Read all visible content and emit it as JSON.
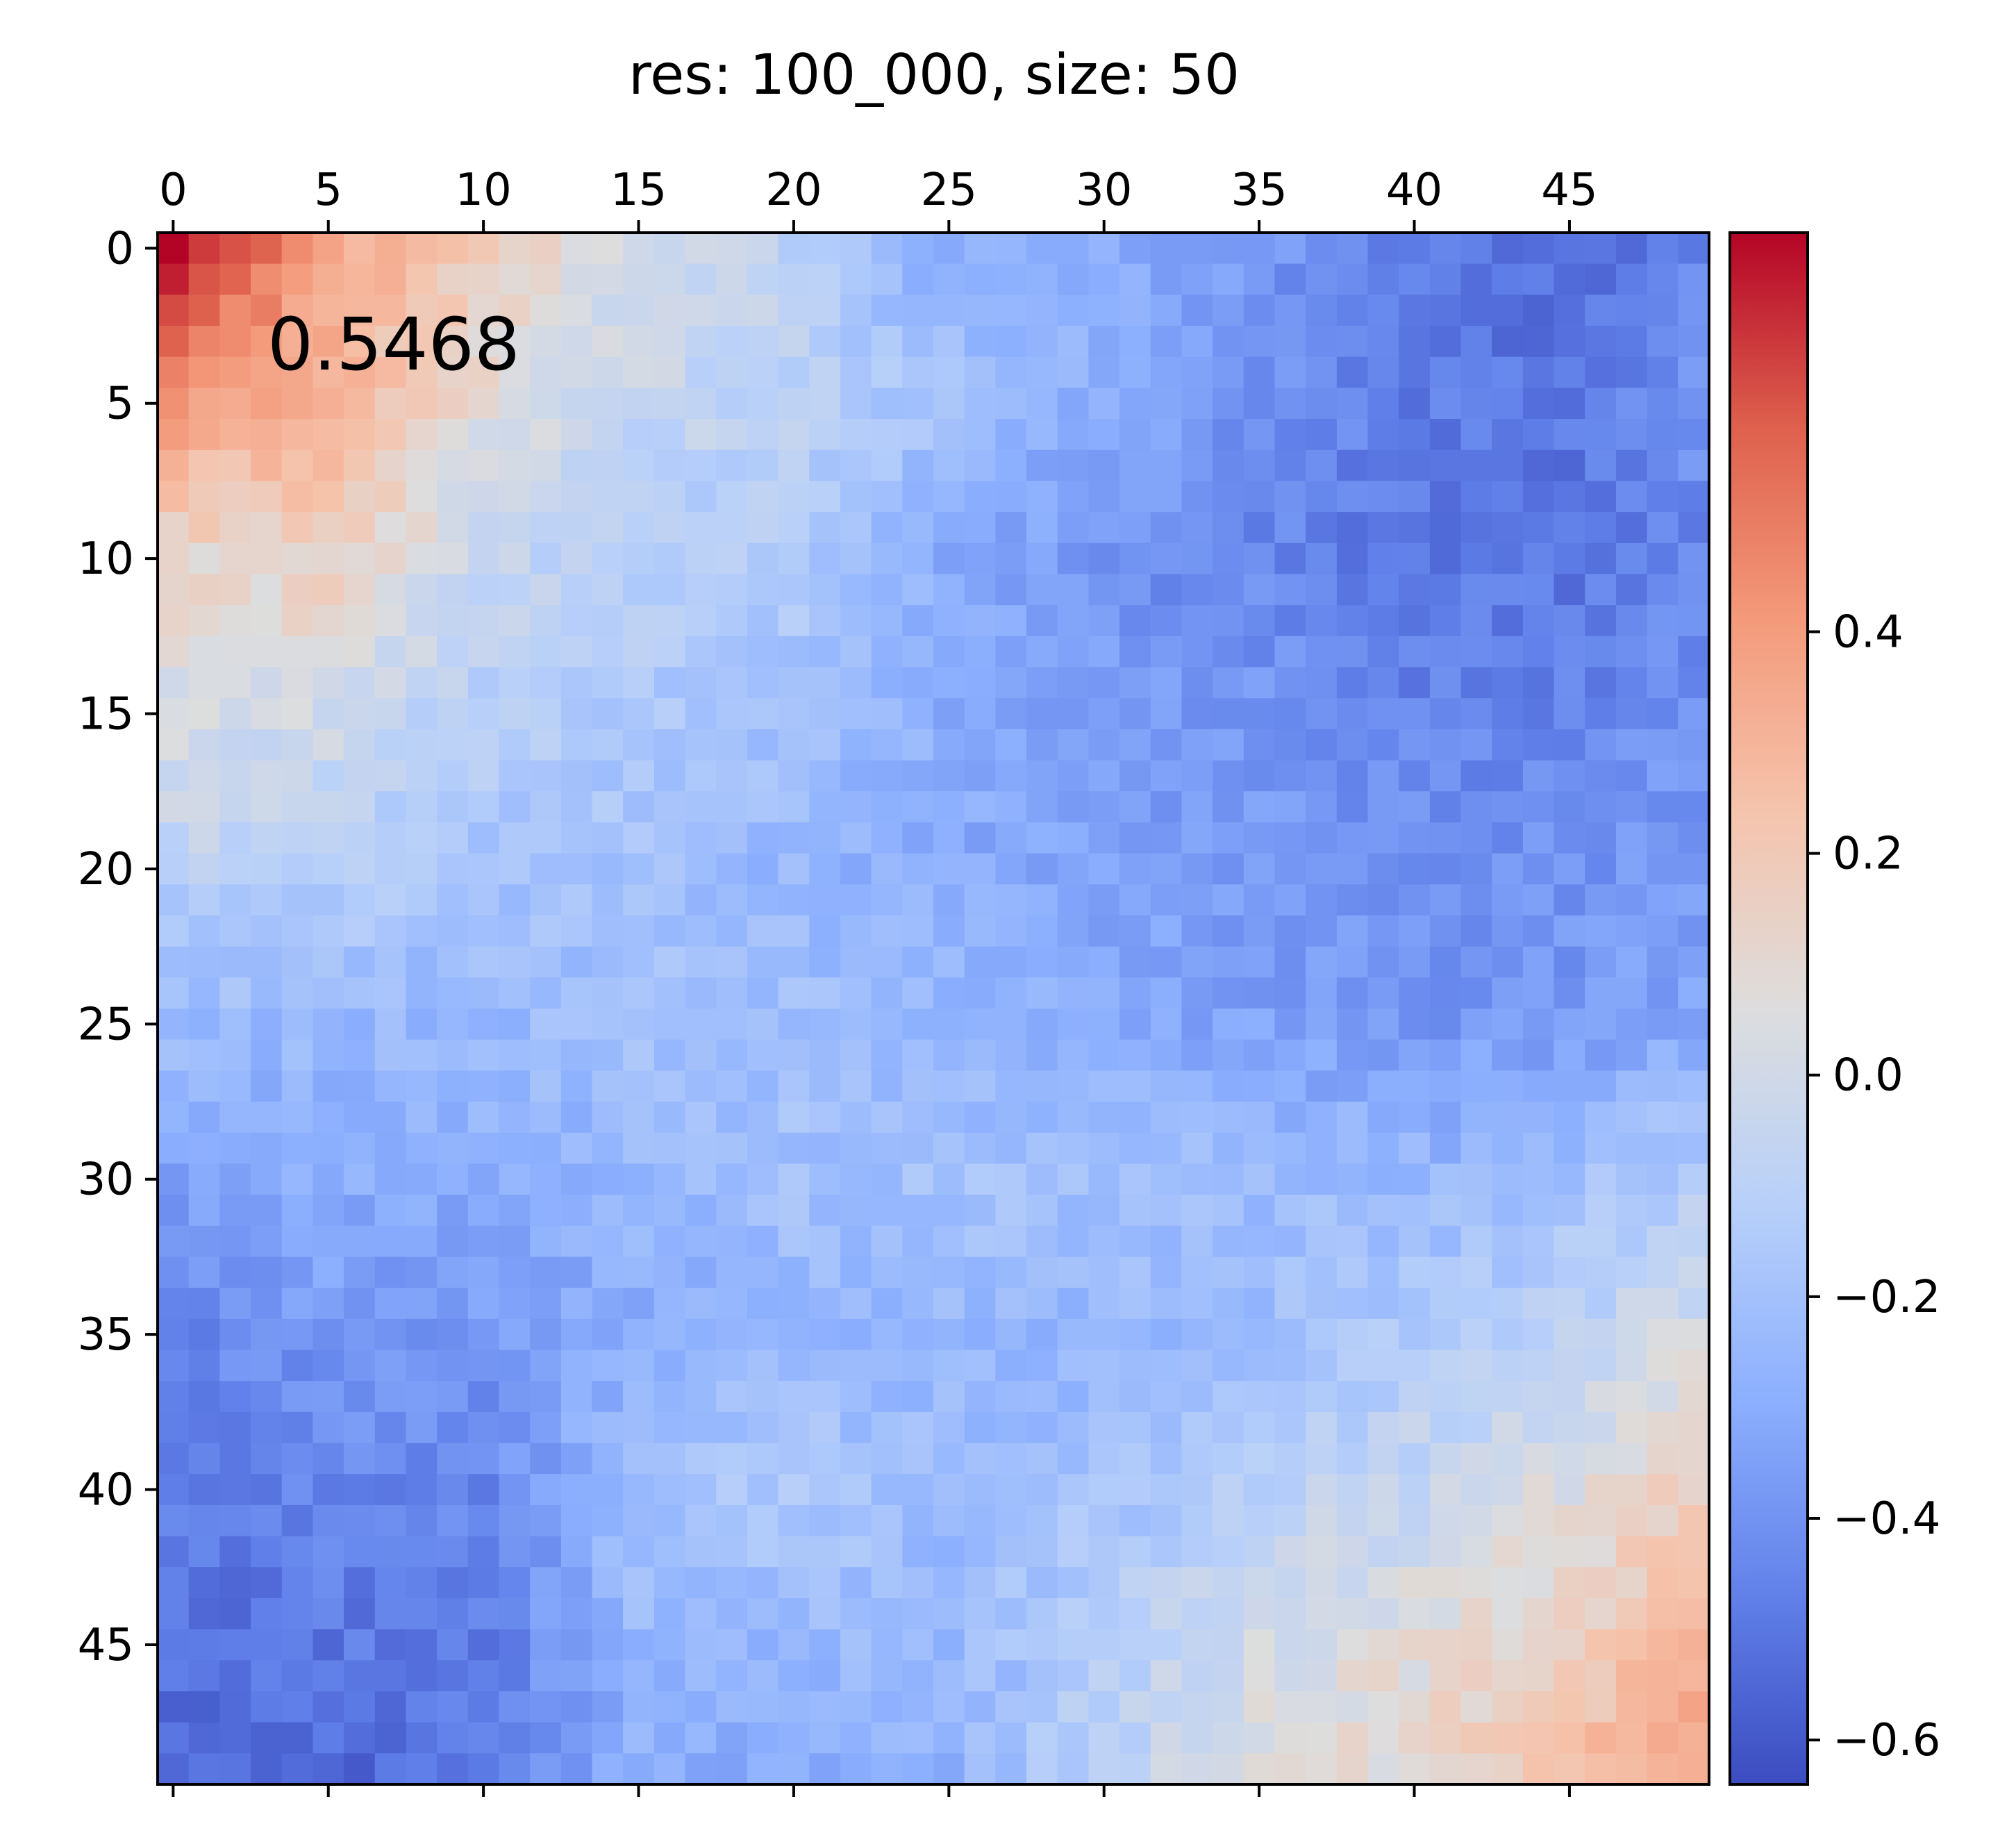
{
  "chart_data": {
    "type": "heatmap",
    "title": "res: 100_000, size: 50",
    "annotation": "0.5468",
    "colormap": "coolwarm",
    "vmin": -0.64,
    "vmax": 0.76,
    "x_ticks": [
      "0",
      "5",
      "10",
      "15",
      "20",
      "25",
      "30",
      "35",
      "40",
      "45"
    ],
    "y_ticks": [
      "0",
      "5",
      "10",
      "15",
      "20",
      "25",
      "30",
      "35",
      "40",
      "45"
    ],
    "colorbar_ticks": [
      {
        "value": 0.4,
        "label": "0.4"
      },
      {
        "value": 0.2,
        "label": "0.2"
      },
      {
        "value": 0.0,
        "label": "0.0"
      },
      {
        "value": -0.2,
        "label": "−0.2"
      },
      {
        "value": -0.4,
        "label": "−0.4"
      },
      {
        "value": -0.6,
        "label": "−0.6"
      }
    ],
    "matrix_size": 50,
    "anchor_grid": {
      "rows": [
        0,
        5,
        10,
        15,
        20,
        25,
        30,
        35,
        40,
        45,
        49
      ],
      "cols": [
        0,
        5,
        10,
        15,
        20,
        25,
        30,
        35,
        40,
        45,
        49
      ],
      "values": [
        [
          0.76,
          0.35,
          0.18,
          0.02,
          -0.1,
          -0.3,
          -0.3,
          -0.38,
          -0.48,
          -0.55,
          -0.45
        ],
        [
          0.4,
          0.3,
          0.08,
          -0.05,
          -0.1,
          -0.2,
          -0.3,
          -0.4,
          -0.48,
          -0.5,
          -0.4
        ],
        [
          0.12,
          0.15,
          -0.05,
          -0.12,
          -0.15,
          -0.3,
          -0.4,
          -0.45,
          -0.5,
          -0.5,
          -0.45
        ],
        [
          0.03,
          0.0,
          -0.12,
          -0.15,
          -0.2,
          -0.3,
          -0.35,
          -0.38,
          -0.45,
          -0.45,
          -0.4
        ],
        [
          -0.1,
          -0.12,
          -0.18,
          -0.2,
          -0.25,
          -0.3,
          -0.35,
          -0.38,
          -0.4,
          -0.4,
          -0.38
        ],
        [
          -0.22,
          -0.25,
          -0.25,
          -0.2,
          -0.2,
          -0.25,
          -0.3,
          -0.35,
          -0.38,
          -0.38,
          -0.32
        ],
        [
          -0.35,
          -0.3,
          -0.3,
          -0.25,
          -0.2,
          -0.2,
          -0.2,
          -0.22,
          -0.25,
          -0.2,
          -0.15
        ],
        [
          -0.45,
          -0.38,
          -0.38,
          -0.3,
          -0.25,
          -0.25,
          -0.25,
          -0.22,
          -0.15,
          -0.1,
          0.02
        ],
        [
          -0.48,
          -0.45,
          -0.45,
          -0.2,
          -0.15,
          -0.22,
          -0.2,
          -0.1,
          -0.05,
          0.05,
          0.18
        ],
        [
          -0.52,
          -0.5,
          -0.48,
          -0.25,
          -0.25,
          -0.25,
          -0.12,
          0.0,
          0.08,
          0.15,
          0.3
        ],
        [
          -0.55,
          -0.55,
          -0.5,
          -0.3,
          -0.3,
          -0.28,
          -0.1,
          0.05,
          0.1,
          0.25,
          0.35
        ]
      ]
    },
    "noise_amplitude": 0.06
  }
}
